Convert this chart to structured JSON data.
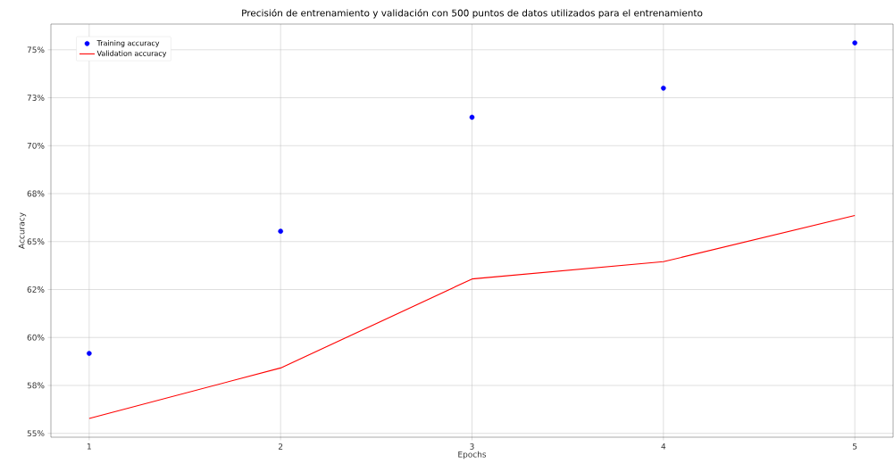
{
  "chart_data": {
    "type": "line",
    "title": "Precisión de entrenamiento y validación con 500 puntos de datos utilizados para el entrenamiento",
    "xlabel": "Epochs",
    "ylabel": "Accuracy",
    "x": [
      1,
      2,
      3,
      4,
      5
    ],
    "series": [
      {
        "name": "Training accuracy",
        "type": "scatter",
        "marker": "circle",
        "color": "#0000ff",
        "values": [
          59.17,
          65.54,
          71.48,
          73.0,
          75.36
        ]
      },
      {
        "name": "Validation accuracy",
        "color": "#ff0000",
        "values": [
          55.78,
          58.41,
          63.05,
          63.95,
          66.36
        ]
      }
    ],
    "xlim": [
      0.8,
      5.2
    ],
    "xticks": [
      1,
      2,
      3,
      4,
      5
    ],
    "ylim": [
      54.8,
      76.34
    ],
    "yticks": [
      {
        "value": 55,
        "label": "55%"
      },
      {
        "value": 57.5,
        "label": "58%"
      },
      {
        "value": 60,
        "label": "60%"
      },
      {
        "value": 62.5,
        "label": "62%"
      },
      {
        "value": 65,
        "label": "65%"
      },
      {
        "value": 67.5,
        "label": "68%"
      },
      {
        "value": 70,
        "label": "70%"
      },
      {
        "value": 72.5,
        "label": "73%"
      },
      {
        "value": 75,
        "label": "75%"
      }
    ],
    "grid": true,
    "legend": "top left"
  }
}
